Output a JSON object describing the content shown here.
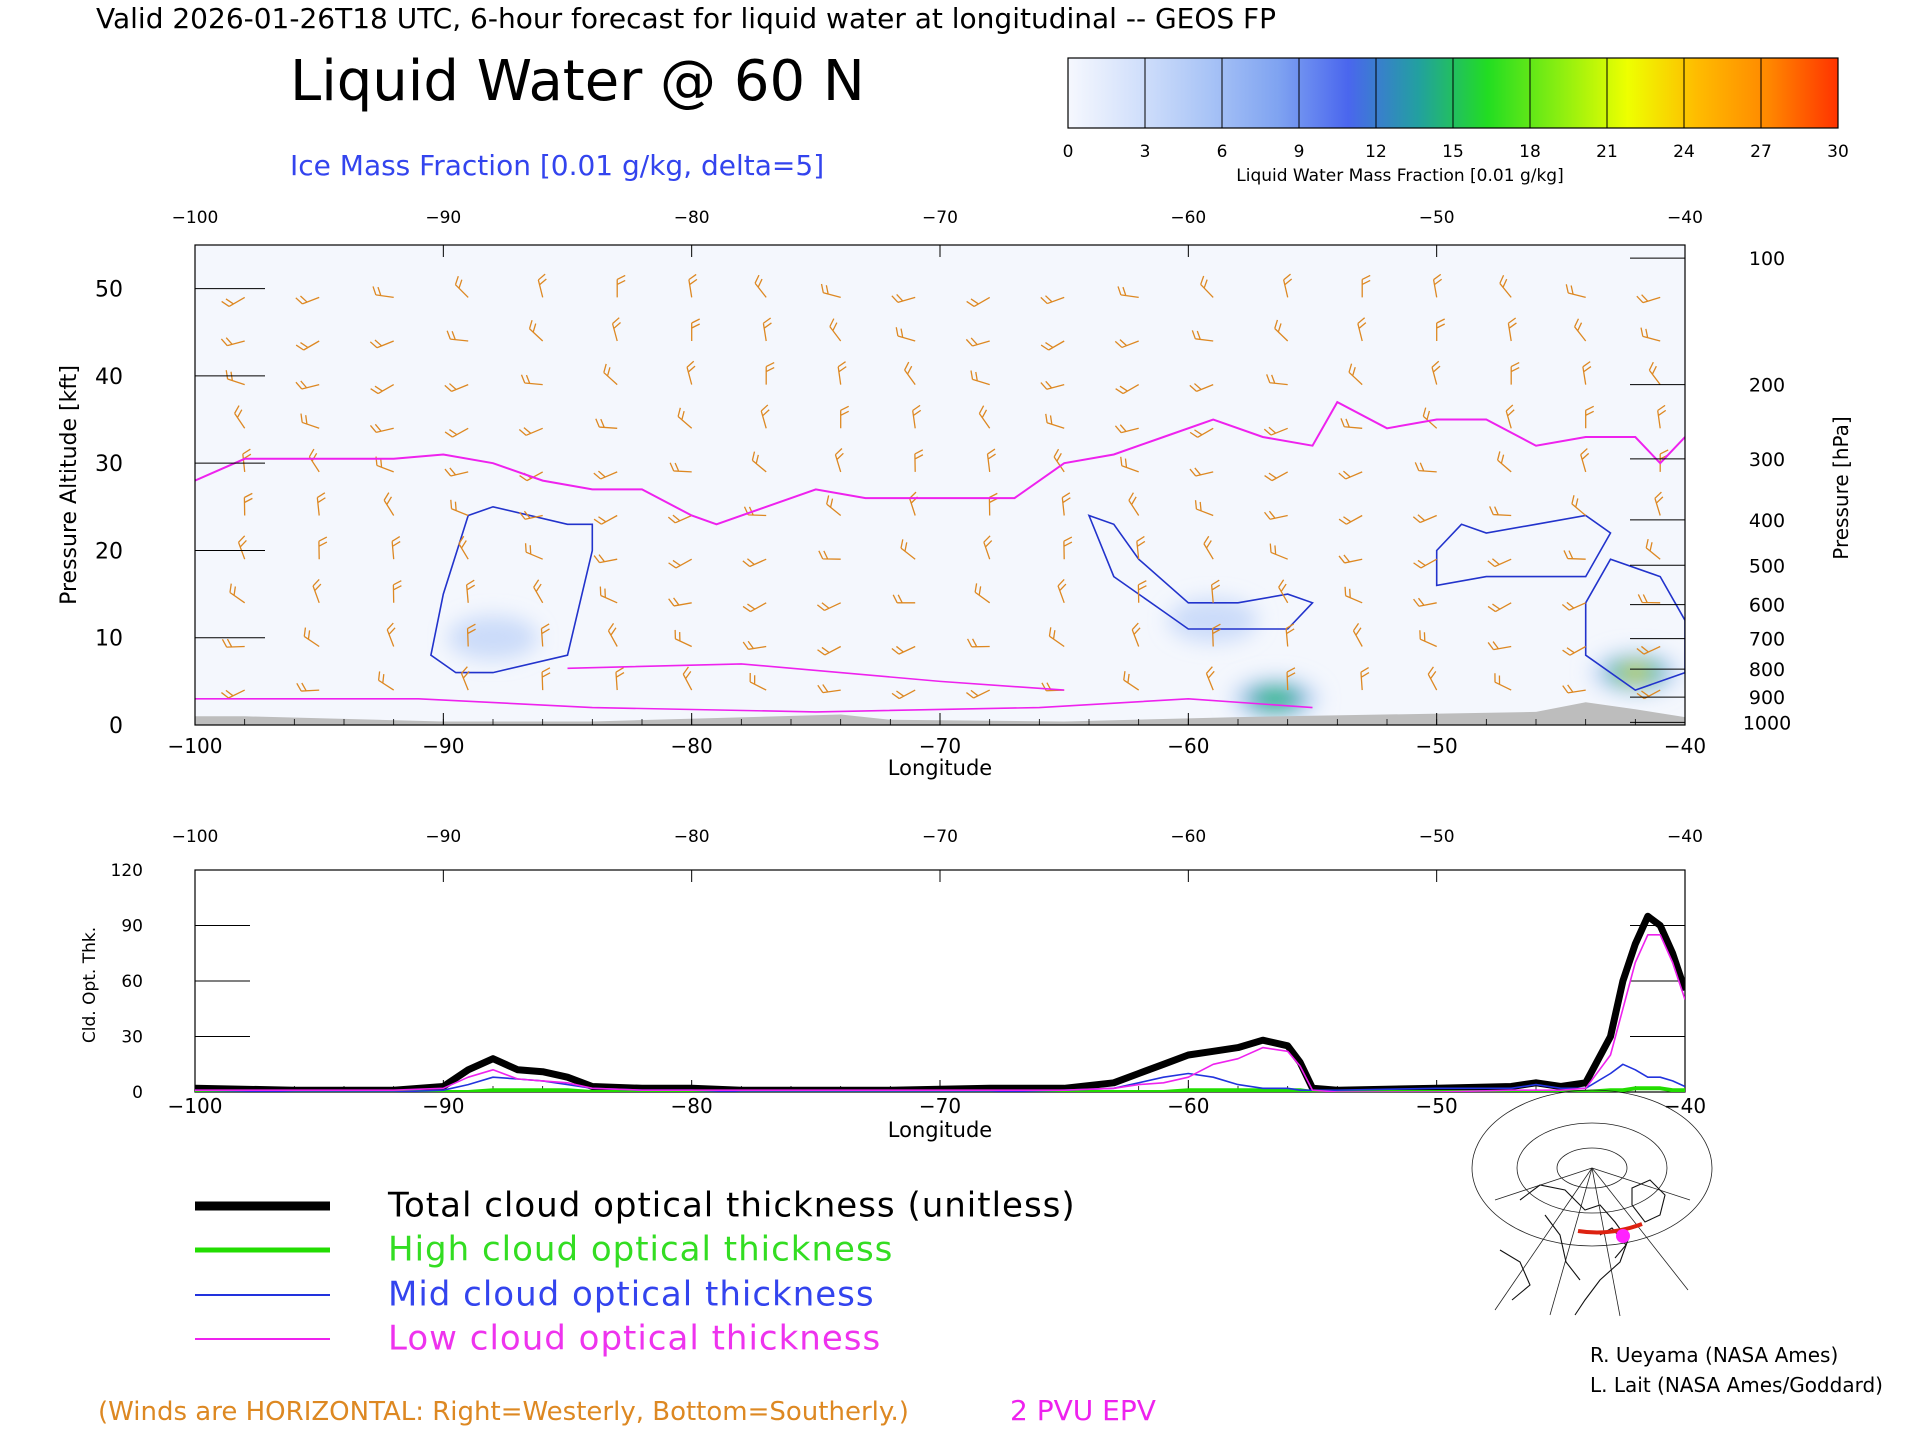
{
  "header": {
    "valid_line": "Valid 2026-01-26T18 UTC, 6-hour forecast for liquid water at longitudinal -- GEOS FP",
    "main_title": "Liquid Water @ 60 N",
    "ice_subtitle": "Ice Mass Fraction [0.01 g/kg, delta=5]"
  },
  "colorbar": {
    "label": "Liquid Water Mass Fraction [0.01 g/kg]",
    "ticks": [
      "0",
      "3",
      "6",
      "9",
      "12",
      "15",
      "18",
      "21",
      "24",
      "27",
      "30"
    ],
    "colors": [
      "#f6f8fe",
      "#d2e0fb",
      "#a9c4f6",
      "#7fa3f1",
      "#4a66ee",
      "#22a0a0",
      "#22dd22",
      "#88ee11",
      "#eeff00",
      "#ffbb00",
      "#ff8800",
      "#ff3300"
    ]
  },
  "panel_top": {
    "lon_ticks": [
      "-100",
      "-90",
      "-80",
      "-70",
      "-60",
      "-50",
      "-40"
    ],
    "alt_ticks": [
      "0",
      "10",
      "20",
      "30",
      "40",
      "50"
    ],
    "pressure_ticks": [
      "100",
      "200",
      "300",
      "400",
      "500",
      "600",
      "700",
      "800",
      "900",
      "1000"
    ],
    "ylabel_left": "Pressure Altitude [kft]",
    "ylabel_right": "Pressure [hPa]",
    "xlabel": "Longitude"
  },
  "panel_bottom": {
    "lon_ticks": [
      "-100",
      "-90",
      "-80",
      "-70",
      "-60",
      "-50",
      "-40"
    ],
    "y_ticks": [
      "0",
      "30",
      "60",
      "90",
      "120"
    ],
    "ylabel": "Cld. Opt. Thk.",
    "xlabel": "Longitude"
  },
  "legend": {
    "total": "Total cloud optical thickness (unitless)",
    "high": "High cloud optical thickness",
    "mid": "Mid cloud optical thickness",
    "low": "Low cloud optical thickness",
    "colors": {
      "total": "#000000",
      "high": "#22dd00",
      "mid": "#2233dd",
      "low": "#ee22ee"
    }
  },
  "footer": {
    "winds_note": "(Winds are HORIZONTAL: Right=Westerly, Bottom=Southerly.)",
    "epv_label": "2 PVU EPV",
    "credit1": "R. Ueyama (NASA Ames)",
    "credit2": "L. Lait (NASA Ames/Goddard)"
  },
  "chart_data": [
    {
      "type": "heatmap",
      "title": "Liquid Water @ 60 N",
      "xlabel": "Longitude",
      "ylabel": "Pressure Altitude [kft]",
      "xlim": [
        -100,
        -40
      ],
      "ylim": [
        0,
        55
      ],
      "liquid_water_maxima": [
        {
          "lon": -56.5,
          "alt_kft": 3,
          "value": 16
        },
        {
          "lon": -42,
          "alt_kft": 6,
          "value": 25
        },
        {
          "lon": -88,
          "alt_kft": 10,
          "value": 4
        },
        {
          "lon": -59,
          "alt_kft": 12,
          "value": 4
        }
      ],
      "epv_2pvu_tropopause": {
        "lon": [
          -100,
          -98,
          -95,
          -92,
          -90,
          -88,
          -86,
          -84,
          -82,
          -80,
          -79,
          -77,
          -75,
          -73,
          -71,
          -69,
          -67,
          -65,
          -63,
          -61,
          -59,
          -57,
          -55,
          -54,
          -52,
          -50,
          -48,
          -46,
          -44,
          -42,
          -41,
          -40
        ],
        "alt_kft": [
          28,
          30.5,
          30.5,
          30.5,
          31,
          30,
          28,
          27,
          27,
          24,
          23,
          25,
          27,
          26,
          26,
          26,
          26,
          30,
          31,
          33,
          35,
          33,
          32,
          37,
          34,
          35,
          35,
          32,
          33,
          33,
          30,
          33
        ]
      },
      "ice_contours": [
        {
          "value": 5,
          "lon": [
            -89,
            -88,
            -85,
            -84,
            -84,
            -84.5,
            -85,
            -88,
            -89.5,
            -90.5,
            -90,
            -89
          ],
          "alt_kft": [
            24,
            25,
            23,
            23,
            20,
            14,
            8,
            6,
            6,
            8,
            15,
            24
          ]
        },
        {
          "value": 5,
          "lon": [
            -64,
            -63,
            -62,
            -60,
            -58,
            -56,
            -55,
            -56,
            -58,
            -60,
            -61,
            -63,
            -64
          ],
          "alt_kft": [
            24,
            23,
            19,
            14,
            14,
            15,
            14,
            11,
            11,
            11,
            13,
            17,
            24
          ]
        },
        {
          "value": 5,
          "lon": [
            -50,
            -49,
            -48,
            -46,
            -44,
            -43,
            -44,
            -46,
            -48,
            -50
          ],
          "alt_kft": [
            20,
            23,
            22,
            23,
            24,
            22,
            17,
            17,
            17,
            16
          ]
        },
        {
          "value": 5,
          "lon": [
            -44,
            -43,
            -41,
            -40,
            -40,
            -42,
            -44,
            -44
          ],
          "alt_kft": [
            14,
            19,
            17,
            12,
            6,
            4,
            8,
            14
          ]
        }
      ],
      "winds_note": "(Winds are HORIZONTAL: Right=Westerly, Bottom=Southerly.)"
    },
    {
      "type": "line",
      "xlabel": "Longitude",
      "ylabel": "Cld. Opt. Thk.",
      "xlim": [
        -100,
        -40
      ],
      "ylim": [
        0,
        120
      ],
      "x": [
        -100,
        -96,
        -92,
        -90,
        -89,
        -88,
        -87,
        -86,
        -85,
        -84,
        -82,
        -80,
        -78,
        -76,
        -72,
        -68,
        -65,
        -63,
        -62,
        -61,
        -60,
        -59,
        -58,
        -57,
        -56,
        -55.5,
        -55,
        -54,
        -50,
        -47,
        -46,
        -45,
        -44,
        -43,
        -42.5,
        -42,
        -41.5,
        -41,
        -40.5,
        -40
      ],
      "series": [
        {
          "name": "Total cloud optical thickness (unitless)",
          "values": [
            2,
            1,
            1,
            3,
            12,
            18,
            12,
            11,
            8,
            3,
            2,
            2,
            1,
            1,
            1,
            2,
            2,
            5,
            10,
            15,
            20,
            22,
            24,
            28,
            25,
            16,
            2,
            1,
            2,
            3,
            5,
            3,
            5,
            30,
            60,
            80,
            95,
            90,
            75,
            55
          ]
        },
        {
          "name": "High cloud optical thickness",
          "values": [
            0,
            0,
            0,
            0,
            0,
            1,
            1,
            1,
            1,
            0,
            0,
            0,
            0,
            0,
            0,
            0,
            0,
            0,
            0,
            0,
            1,
            1,
            1,
            1,
            1,
            1,
            0,
            0,
            0,
            0,
            0,
            0,
            0,
            1,
            1,
            2,
            2,
            2,
            1,
            1
          ]
        },
        {
          "name": "Mid cloud optical thickness",
          "values": [
            1,
            0,
            0,
            1,
            4,
            8,
            7,
            6,
            4,
            2,
            1,
            1,
            0,
            0,
            0,
            0,
            1,
            2,
            5,
            8,
            10,
            8,
            4,
            2,
            2,
            1,
            1,
            1,
            2,
            2,
            4,
            2,
            2,
            10,
            15,
            12,
            8,
            8,
            6,
            3
          ]
        },
        {
          "name": "Low cloud optical thickness",
          "values": [
            1,
            1,
            1,
            2,
            8,
            12,
            7,
            6,
            5,
            2,
            1,
            1,
            1,
            1,
            1,
            1,
            1,
            2,
            4,
            5,
            8,
            15,
            18,
            24,
            22,
            14,
            1,
            0,
            0,
            1,
            1,
            1,
            2,
            20,
            45,
            70,
            85,
            85,
            70,
            50
          ]
        }
      ]
    }
  ]
}
